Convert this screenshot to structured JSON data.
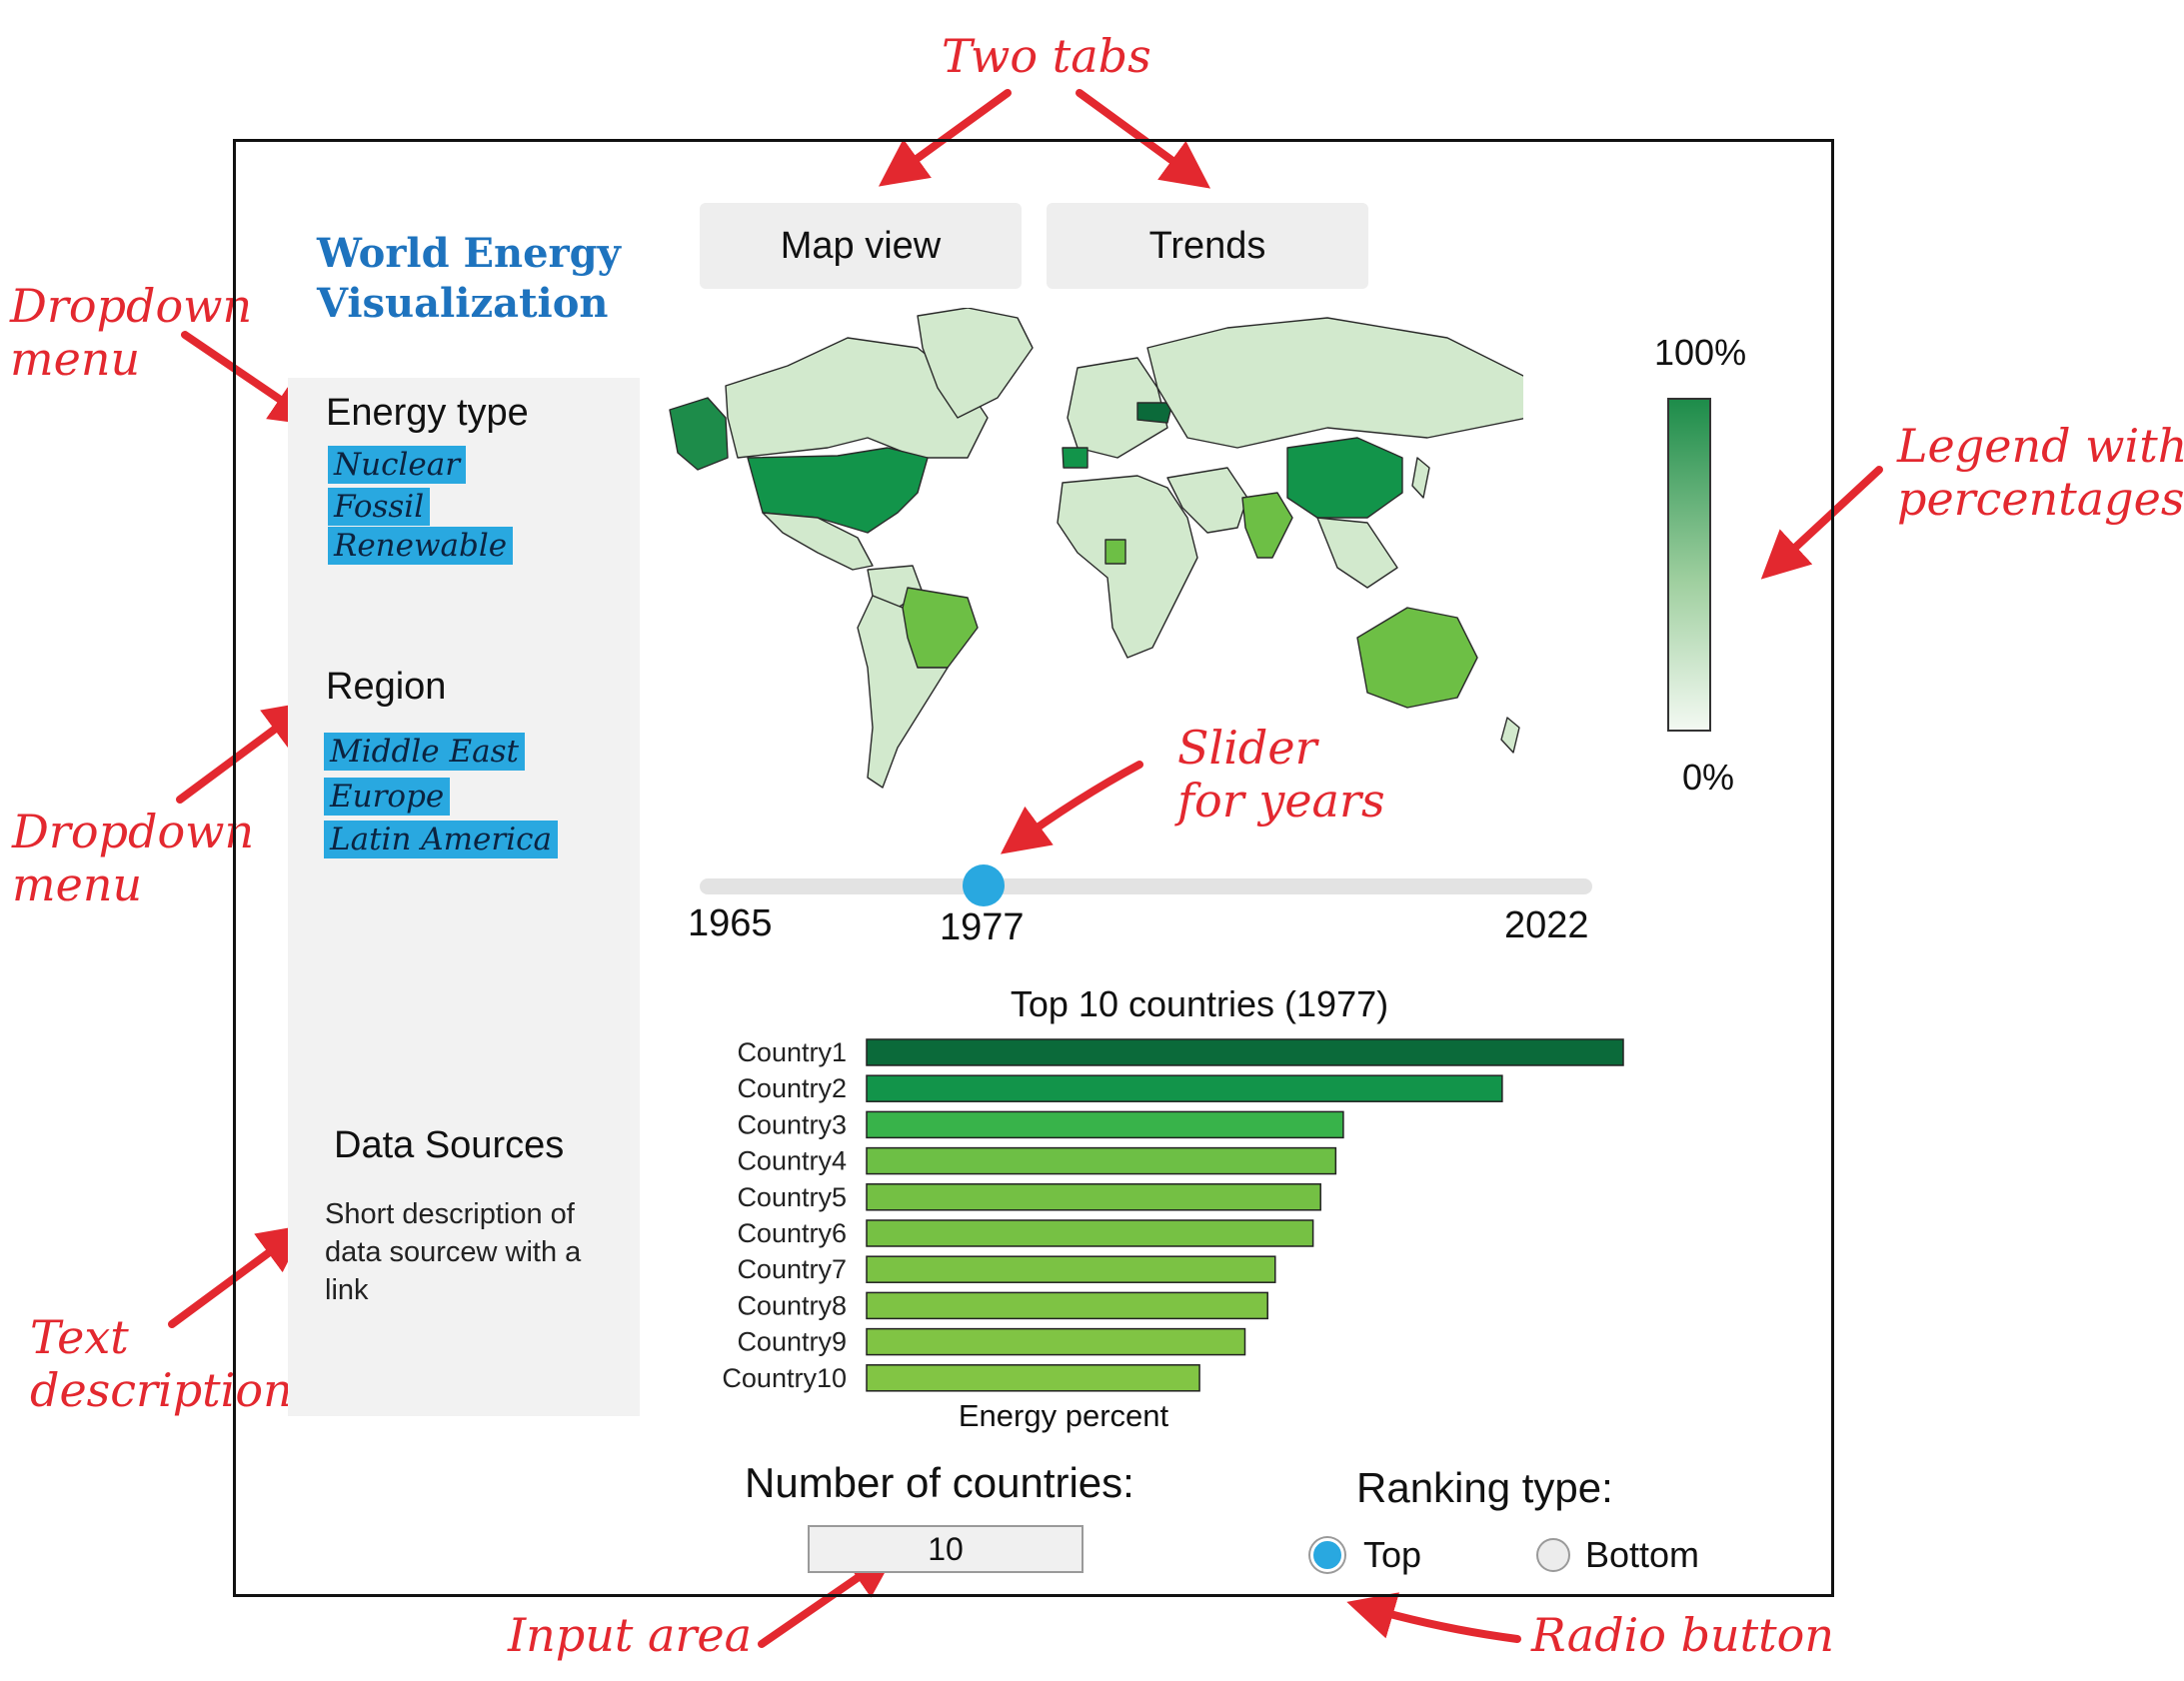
{
  "annotations": {
    "two_tabs": "Two tabs",
    "dropdown_1_line1": "Dropdown",
    "dropdown_1_line2": "menu",
    "dropdown_2_line1": "Dropdown",
    "dropdown_2_line2": "menu",
    "legend_line1": "Legend with",
    "legend_line2": "percentages",
    "slider_line1": "Slider",
    "slider_line2": "for years",
    "text_desc_line1": "Text",
    "text_desc_line2": "description",
    "input_area": "Input area",
    "radio_button": "Radio button",
    "color": "#e3282f"
  },
  "app": {
    "title_line1": "World Energy",
    "title_line2": "Visualization",
    "title_color": "#1e73be"
  },
  "tabs": [
    {
      "label": "Map view"
    },
    {
      "label": "Trends"
    }
  ],
  "sidebar": {
    "energy_type": {
      "heading": "Energy type",
      "options": [
        "Nuclear",
        "Fossil",
        "Renewable"
      ]
    },
    "region": {
      "heading": "Region",
      "options": [
        "Middle East",
        "Europe",
        "Latin America"
      ]
    },
    "data_sources": {
      "heading": "Data Sources",
      "text_line1": "Short description of",
      "text_line2": "data sourcew with a",
      "text_line3": "link"
    },
    "chip_color": "#29a8e0"
  },
  "legend": {
    "max": "100%",
    "min": "0%",
    "color_high": "#1d8c4a",
    "color_low": "#f3f9f2"
  },
  "slider": {
    "min": "1965",
    "max": "2022",
    "value": "1977",
    "color": "#29a8e0"
  },
  "chart_data": {
    "type": "bar",
    "orientation": "horizontal",
    "title": "Top 10 countries (1977)",
    "xlabel": "Energy percent",
    "ylabel": "",
    "categories": [
      "Country1",
      "Country2",
      "Country3",
      "Country4",
      "Country5",
      "Country6",
      "Country7",
      "Country8",
      "Country9",
      "Country10"
    ],
    "values": [
      100,
      84,
      63,
      62,
      60,
      59,
      54,
      53,
      50,
      44
    ],
    "xlim": [
      0,
      100
    ],
    "colors": [
      "#0b6a3a",
      "#12944a",
      "#38b34a",
      "#6dbf45",
      "#74c044",
      "#76c144",
      "#7bc244",
      "#7ec344",
      "#80c444",
      "#82c544"
    ]
  },
  "controls": {
    "count_label": "Number of countries:",
    "count_value": "10",
    "ranking_label": "Ranking type:",
    "options": [
      "Top",
      "Bottom"
    ],
    "selected": "Top"
  }
}
